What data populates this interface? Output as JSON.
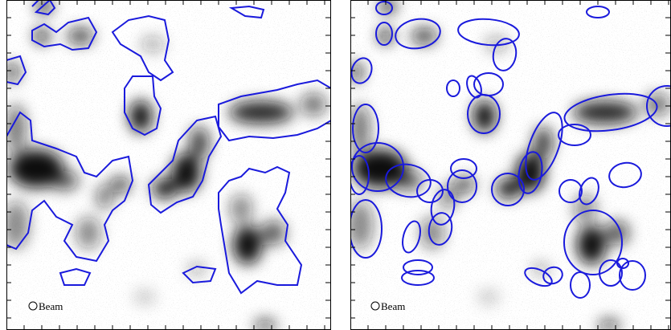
{
  "panels": [
    {
      "beam_label": "Beam"
    },
    {
      "beam_label": "Beam"
    }
  ]
}
